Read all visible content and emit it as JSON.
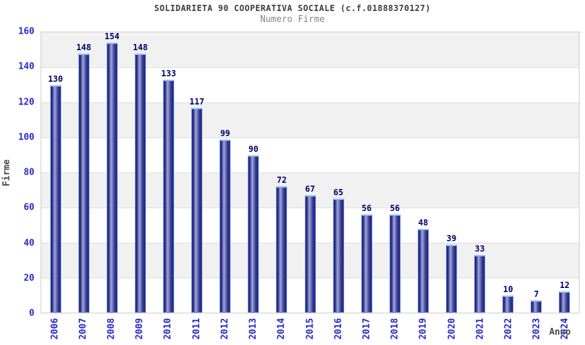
{
  "header": {
    "title": "SOLIDARIETA 90 COOPERATIVA SOCIALE (c.f.01888370127)",
    "subtitle": "Numero Firme"
  },
  "chart_data": {
    "type": "bar",
    "title": "SOLIDARIETA 90 COOPERATIVA SOCIALE (c.f.01888370127)",
    "subtitle": "Numero Firme",
    "xlabel": "Anno",
    "ylabel": "Firme",
    "categories": [
      "2006",
      "2007",
      "2008",
      "2009",
      "2010",
      "2011",
      "2012",
      "2013",
      "2014",
      "2015",
      "2016",
      "2017",
      "2018",
      "2019",
      "2020",
      "2021",
      "2022",
      "2023",
      "2024"
    ],
    "values": [
      130,
      148,
      154,
      148,
      133,
      117,
      99,
      90,
      72,
      67,
      65,
      56,
      56,
      48,
      39,
      33,
      10,
      7,
      12
    ],
    "ylim": [
      0,
      160
    ],
    "yticks": [
      0,
      20,
      40,
      60,
      80,
      100,
      120,
      140,
      160
    ],
    "grid": "horizontal, alternating band fill",
    "legend": "none",
    "colors": {
      "bar_dark": "#20207a",
      "bar_mid": "#3c3f97",
      "bar_light": "#a0a6d6",
      "bar_border": "#5d8ad8",
      "bar_top_border": "#8fc2f0",
      "axis_tick_text": "#2828cd",
      "value_label_text": "#00006b",
      "title_text": "#3d3d3d",
      "subtitle_text": "#858585",
      "axis_name_text": "#4a4a4a",
      "band_fill": "#f1f1f1",
      "gridline": "#dddddd",
      "plot_border": "#cccccc"
    }
  }
}
